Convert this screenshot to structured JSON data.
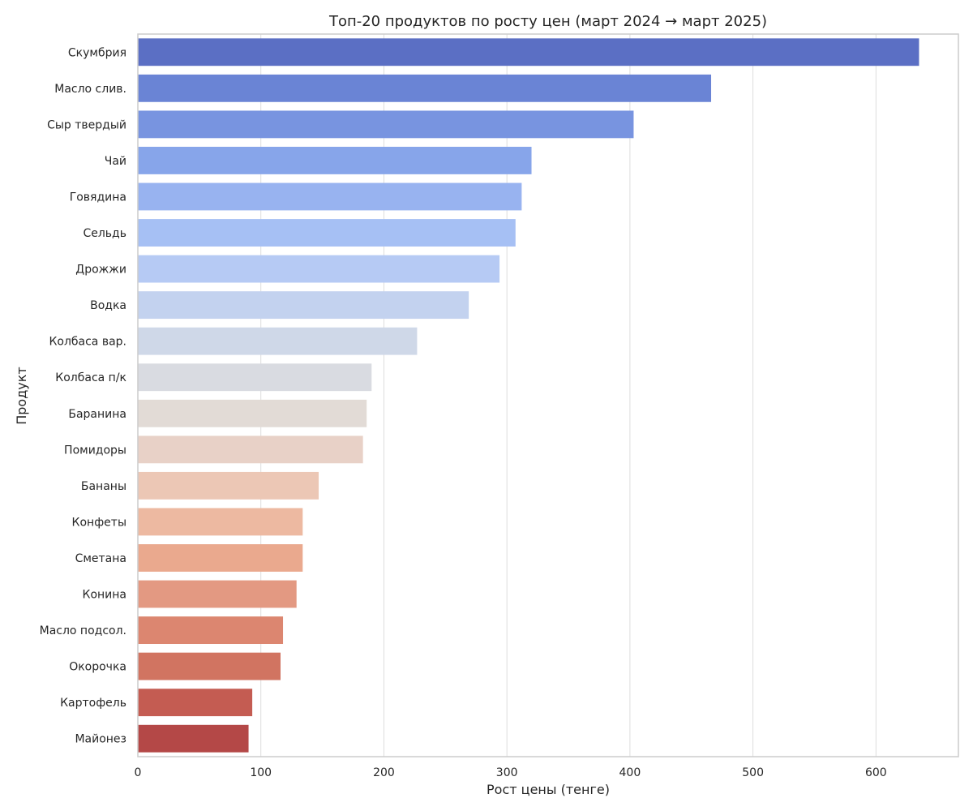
{
  "chart_data": {
    "type": "bar",
    "orientation": "horizontal",
    "title": "Топ-20 продуктов по росту цен (март 2024 → март 2025)",
    "xlabel": "Рост цены (тенге)",
    "ylabel": "Продукт",
    "xlim": [
      0,
      667
    ],
    "xticks": [
      0,
      100,
      200,
      300,
      400,
      500,
      600
    ],
    "grid": "vertical",
    "categories": [
      "Скумбрия",
      "Масло слив.",
      "Сыр твердый",
      "Чай",
      "Говядина",
      "Сельдь",
      "Дрожжи",
      "Водка",
      "Колбаса вар.",
      "Колбаса п/к",
      "Баранина",
      "Помидоры",
      "Бананы",
      "Конфеты",
      "Сметана",
      "Конина",
      "Масло подсол.",
      "Окорочка",
      "Картофель",
      "Майонез"
    ],
    "values": [
      635,
      466,
      403,
      320,
      312,
      307,
      294,
      269,
      227,
      190,
      186,
      183,
      147,
      134,
      134,
      129,
      118,
      116,
      93,
      90
    ],
    "colors": [
      "#5b6fc4",
      "#6a84d5",
      "#7894e0",
      "#87a5ea",
      "#98b3f0",
      "#a6c0f4",
      "#b6caf4",
      "#c3d2ef",
      "#cfd8e8",
      "#d9dbe1",
      "#e2dbd6",
      "#e8d1c7",
      "#ecc7b5",
      "#edb9a1",
      "#eaa98e",
      "#e39982",
      "#dc8670",
      "#d17461",
      "#c45c52",
      "#b44847"
    ],
    "frame_color": "#cccccc",
    "grid_color": "#dddddd"
  }
}
